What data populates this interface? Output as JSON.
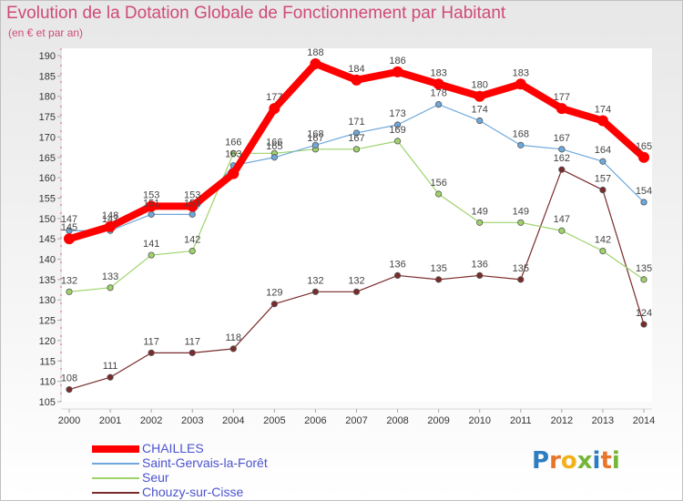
{
  "header": {
    "title": "Evolution de la Dotation Globale de Fonctionnement par Habitant",
    "subtitle": "(en € et par an)"
  },
  "logo": {
    "letters": [
      "P",
      "r",
      "o",
      "x",
      "i",
      "t",
      "i"
    ],
    "colors": [
      "#2e7dc2",
      "#e8762a",
      "#f2b11c",
      "#74b637",
      "#2e7dc2",
      "#e8762a",
      "#74b637"
    ]
  },
  "chart_data": {
    "type": "line",
    "title": "Evolution de la Dotation Globale de Fonctionnement par Habitant",
    "subtitle": "(en € et par an)",
    "xlabel": "",
    "ylabel": "",
    "x": [
      "2000",
      "2001",
      "2002",
      "2003",
      "2004",
      "2005",
      "2006",
      "2007",
      "2008",
      "2009",
      "2010",
      "2011",
      "2012",
      "2013",
      "2014"
    ],
    "ylim": [
      105,
      190
    ],
    "yticks": [
      105,
      110,
      115,
      120,
      125,
      130,
      135,
      140,
      145,
      150,
      155,
      160,
      165,
      170,
      175,
      180,
      185,
      190
    ],
    "grid": false,
    "legend": "bottom-left",
    "series": [
      {
        "name": "CHAILLES",
        "color": "#ff0000",
        "values": [
          145,
          148,
          153,
          153,
          161,
          177,
          188,
          184,
          186,
          183,
          180,
          183,
          177,
          174,
          165
        ],
        "labels": [
          "145",
          "148",
          "153",
          "153",
          "",
          "177",
          "188",
          "184",
          "186",
          "183",
          "180",
          "183",
          "177",
          "174",
          "165"
        ]
      },
      {
        "name": "Saint-Gervais-la-Forêt",
        "color": "#6fa8dc",
        "values": [
          147,
          147,
          151,
          151,
          163,
          165,
          168,
          171,
          173,
          178,
          174,
          168,
          167,
          164,
          154
        ],
        "labels": [
          "147",
          "147",
          "151",
          "151",
          "163",
          "165",
          "168",
          "171",
          "173",
          "178",
          "174",
          "168",
          "167",
          "164",
          "154"
        ]
      },
      {
        "name": "Seur",
        "color": "#9ed36a",
        "values": [
          132,
          133,
          141,
          142,
          166,
          166,
          167,
          167,
          169,
          156,
          149,
          149,
          147,
          142,
          135
        ],
        "labels": [
          "132",
          "133",
          "141",
          "142",
          "166",
          "166",
          "167",
          "167",
          "169",
          "156",
          "149",
          "149",
          "147",
          "142",
          "135"
        ]
      },
      {
        "name": "Chouzy-sur-Cisse",
        "color": "#7a2b2b",
        "values": [
          108,
          111,
          117,
          117,
          118,
          129,
          132,
          132,
          136,
          135,
          136,
          135,
          162,
          157,
          124
        ],
        "labels": [
          "108",
          "111",
          "117",
          "117",
          "118",
          "129",
          "132",
          "132",
          "136",
          "135",
          "136",
          "135",
          "162",
          "157",
          "124"
        ]
      }
    ]
  }
}
